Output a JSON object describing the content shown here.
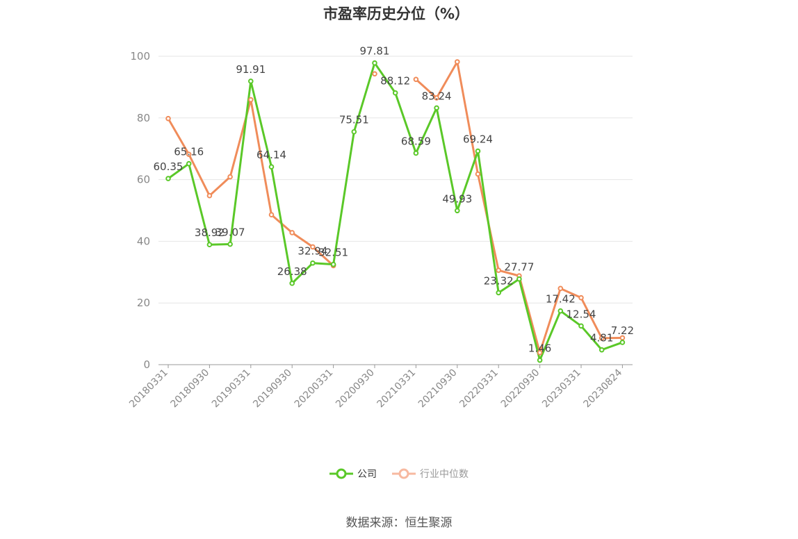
{
  "title": "市盈率历史分位（%）",
  "source": "数据来源：恒生聚源",
  "legend": {
    "company": "公司",
    "industry": "行业中位数"
  },
  "colors": {
    "company": "#5ac828",
    "industry": "#f08c5a",
    "industry_legend": "#f7b9a0",
    "axis": "#999999",
    "grid": "#e6e6e6",
    "label": "#444444",
    "tick": "#888888"
  },
  "chart_data": {
    "type": "line",
    "title": "市盈率历史分位（%）",
    "ylim": [
      0,
      100
    ],
    "yticks": [
      0,
      20,
      40,
      60,
      80,
      100
    ],
    "grid": true,
    "legend_position": "bottom",
    "x_tick_labels": [
      "20180331",
      "20180930",
      "20190331",
      "20190930",
      "20200331",
      "20200930",
      "20210331",
      "20210930",
      "20220331",
      "20220930",
      "20230331",
      "20230824"
    ],
    "x": [
      "20180331",
      "20180630",
      "20180930",
      "20181231",
      "20190331",
      "20190630",
      "20190930",
      "20191231",
      "20200331",
      "20200630",
      "20200930",
      "20201231",
      "20210331",
      "20210630",
      "20210930",
      "20211231",
      "20220331",
      "20220630",
      "20220930",
      "20221231",
      "20230331",
      "20230630",
      "20230824"
    ],
    "series": [
      {
        "name": "公司",
        "values": [
          60.35,
          65.16,
          38.92,
          39.07,
          91.91,
          64.14,
          26.38,
          32.94,
          32.51,
          75.51,
          97.81,
          88.12,
          68.59,
          83.24,
          49.93,
          69.24,
          23.32,
          27.77,
          1.46,
          17.42,
          12.54,
          4.81,
          7.22
        ],
        "labels": [
          "60.35",
          "65.16",
          "38.92",
          "39.07",
          "91.91",
          "64.14",
          "26.38",
          "32.94",
          "32.51",
          "75.51",
          "97.81",
          "88.12",
          "68.59",
          "83.24",
          "49.93",
          "69.24",
          "23.32",
          "27.77",
          "1.46",
          "17.42",
          "12.54",
          "4.81",
          "7.22"
        ]
      },
      {
        "name": "行业中位数",
        "values": [
          79.8,
          68.2,
          54.8,
          60.9,
          85.9,
          48.6,
          42.8,
          38.2,
          32.1,
          null,
          94.3,
          null,
          92.5,
          86.5,
          98.2,
          61.8,
          30.6,
          28.8,
          3.9,
          24.7,
          21.7,
          8.6,
          8.7
        ]
      }
    ]
  }
}
